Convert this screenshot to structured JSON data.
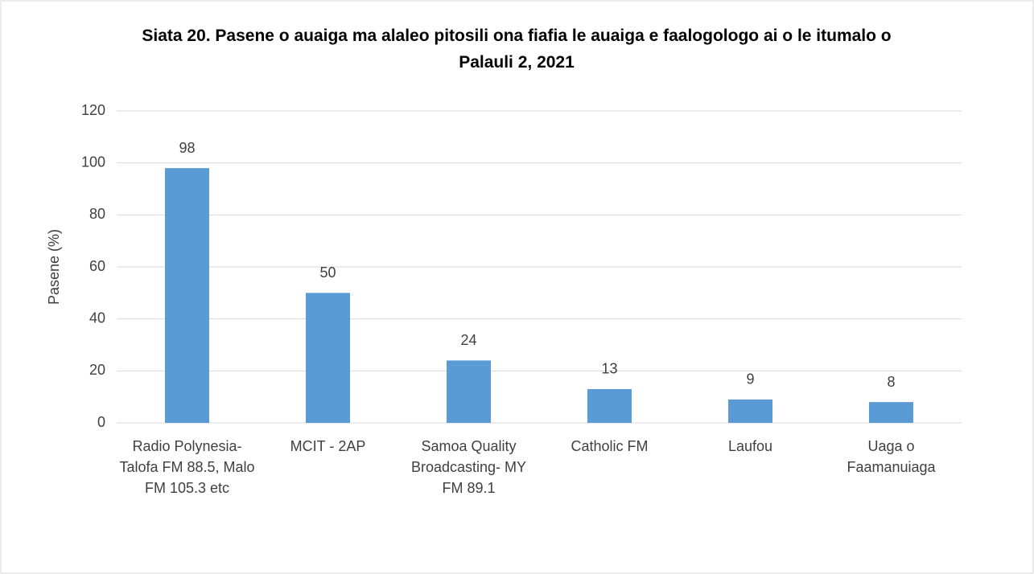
{
  "chart_data": {
    "type": "bar",
    "title": "Siata 20. Pasene o auaiga ma alaleo pitosili ona fiafia le auaiga e faalogologo ai o le itumalo o Palauli 2, 2021",
    "y_label": "Pasene (%)",
    "categories": [
      "Radio Polynesia-Talofa FM 88.5, Malo FM 105.3 etc",
      "MCIT - 2AP",
      "Samoa Quality Broadcasting- MY FM 89.1",
      "Catholic FM",
      "Laufou",
      "Uaga o Faamanuiaga"
    ],
    "values": [
      98,
      50,
      24,
      13,
      9,
      8
    ],
    "color": "#5b9bd5",
    "ylim": [
      0,
      120
    ],
    "yticks": [
      0,
      20,
      40,
      60,
      80,
      100,
      120
    ],
    "grid": true
  }
}
